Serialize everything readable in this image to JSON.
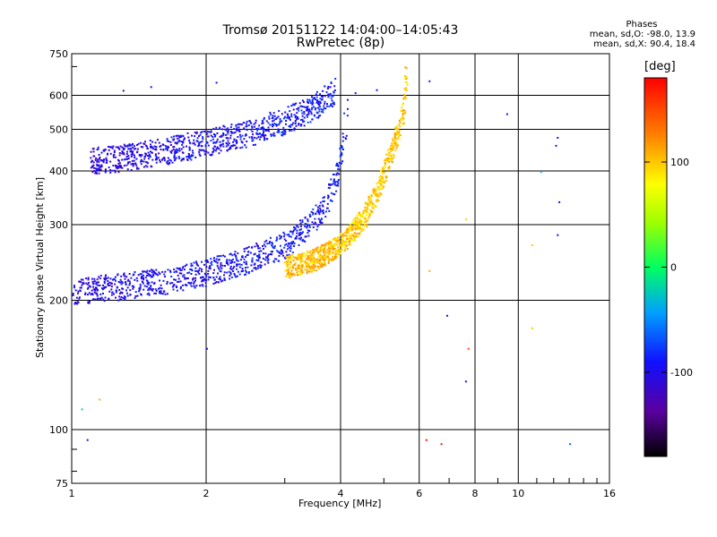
{
  "header": {
    "title_line1": "Tromsø 20151122 14:04:00–14:05:43",
    "title_line2": "RwPretec (8p)"
  },
  "phases": {
    "heading": "Phases",
    "o_line": "mean, sd,O: -98.0, 13.9",
    "x_line": "mean, sd,X: 90.4, 18.4"
  },
  "chart_data": {
    "type": "scatter",
    "xlabel": "Frequency [MHz]",
    "ylabel": "Stationary phase Virtual Height [km]",
    "xscale": "log",
    "yscale": "log",
    "xlim": [
      1,
      16
    ],
    "ylim": [
      75,
      750
    ],
    "x_ticks": [
      1,
      2,
      4,
      6,
      8,
      10,
      16
    ],
    "y_ticks": [
      75,
      100,
      200,
      300,
      400,
      500,
      600,
      750
    ],
    "grid": true,
    "colorbar": {
      "label": "[deg]",
      "min": -180,
      "max": 180,
      "ticks": [
        -100,
        0,
        100
      ]
    },
    "traces": [
      {
        "description": "O-mode F-layer trace",
        "points": [
          [
            1.0,
            200,
            -110
          ],
          [
            1.1,
            203,
            -105
          ],
          [
            1.3,
            206,
            -100
          ],
          [
            1.6,
            212,
            -98
          ],
          [
            2.0,
            222,
            -95
          ],
          [
            2.5,
            238,
            -95
          ],
          [
            3.0,
            258,
            -92
          ],
          [
            3.4,
            285,
            -90
          ],
          [
            3.7,
            320,
            -90
          ],
          [
            3.9,
            370,
            -88
          ],
          [
            4.0,
            420,
            -90
          ],
          [
            4.1,
            500,
            -95
          ],
          [
            4.15,
            600,
            -100
          ]
        ]
      },
      {
        "description": "O-mode upper trace",
        "points": [
          [
            1.1,
            405,
            -110
          ],
          [
            1.3,
            410,
            -105
          ],
          [
            1.6,
            425,
            -100
          ],
          [
            2.0,
            445,
            -98
          ],
          [
            2.5,
            470,
            -95
          ],
          [
            3.0,
            500,
            -90
          ],
          [
            3.5,
            540,
            -88
          ],
          [
            3.9,
            590,
            -90
          ]
        ]
      },
      {
        "description": "X-mode F-layer trace",
        "points": [
          [
            3.0,
            230,
            100
          ],
          [
            3.5,
            240,
            105
          ],
          [
            4.0,
            260,
            100
          ],
          [
            4.5,
            300,
            95
          ],
          [
            4.9,
            360,
            100
          ],
          [
            5.2,
            430,
            105
          ],
          [
            5.5,
            520,
            100
          ],
          [
            5.6,
            640,
            95
          ]
        ]
      }
    ],
    "extra_points": [
      [
        1.5,
        630,
        -110
      ],
      [
        1.3,
        618,
        -120
      ],
      [
        2.1,
        645,
        -110
      ],
      [
        4.3,
        610,
        -100
      ],
      [
        4.8,
        620,
        -90
      ],
      [
        6.3,
        650,
        -110
      ],
      [
        9.4,
        545,
        -105
      ],
      [
        12.2,
        480,
        -100
      ],
      [
        12.1,
        460,
        -110
      ],
      [
        11.2,
        400,
        -40
      ],
      [
        12.3,
        340,
        -105
      ],
      [
        12.2,
        285,
        -110
      ],
      [
        10.7,
        270,
        100
      ],
      [
        7.6,
        310,
        95
      ],
      [
        6.3,
        235,
        110
      ],
      [
        6.9,
        185,
        -100
      ],
      [
        7.7,
        155,
        150
      ],
      [
        7.6,
        130,
        -90
      ],
      [
        10.7,
        173,
        100
      ],
      [
        1.05,
        112,
        -20
      ],
      [
        1.15,
        118,
        110
      ],
      [
        1.08,
        95,
        -110
      ],
      [
        6.2,
        95,
        170
      ],
      [
        6.7,
        93,
        170
      ],
      [
        13.0,
        93,
        -60
      ],
      [
        2.0,
        155,
        -110
      ]
    ]
  }
}
